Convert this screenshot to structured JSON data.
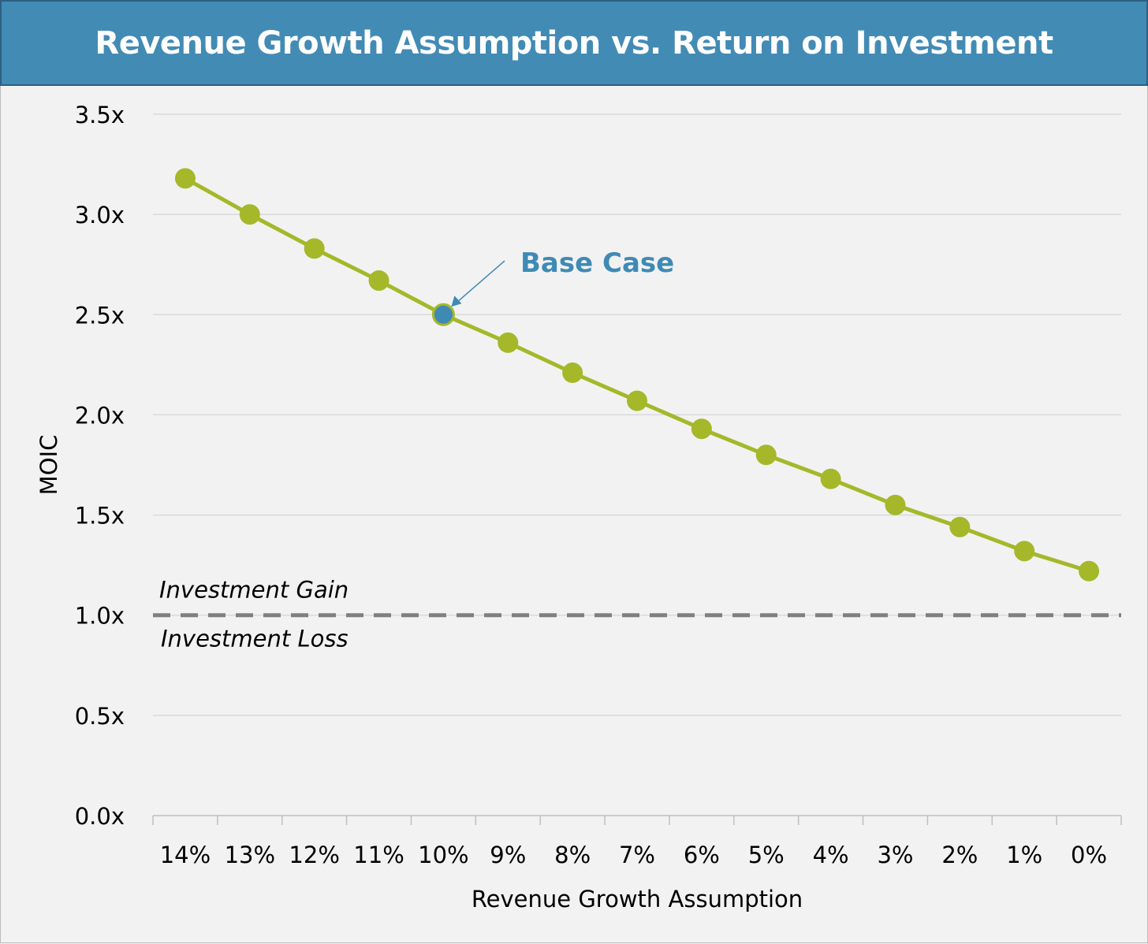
{
  "chart_data": {
    "type": "line",
    "title": "Revenue Growth Assumption vs. Return on Investment",
    "xlabel": "Revenue Growth Assumption",
    "ylabel": "MOIC",
    "categories": [
      "14%",
      "13%",
      "12%",
      "11%",
      "10%",
      "9%",
      "8%",
      "7%",
      "6%",
      "5%",
      "4%",
      "3%",
      "2%",
      "1%",
      "0%"
    ],
    "series": [
      {
        "name": "MOIC",
        "values": [
          3.18,
          3.0,
          2.83,
          2.67,
          2.5,
          2.36,
          2.21,
          2.07,
          1.93,
          1.8,
          1.68,
          1.55,
          1.44,
          1.32,
          1.22
        ]
      }
    ],
    "ylim": [
      0,
      3.5
    ],
    "yticks": [
      0,
      0.5,
      1.0,
      1.5,
      2.0,
      2.5,
      3.0,
      3.5
    ],
    "ytick_labels": [
      "0.0x",
      "0.5x",
      "1.0x",
      "1.5x",
      "2.0x",
      "2.5x",
      "3.0x",
      "3.5x"
    ],
    "grid": true,
    "reference_line": {
      "value": 1.0,
      "label_above": "Investment Gain",
      "label_below": "Investment Loss"
    },
    "highlight": {
      "category": "10%",
      "label": "Base Case"
    },
    "colors": {
      "line": "#a4b82a",
      "highlight": "#3f8ab5",
      "title_bg": "#428bb5",
      "reference": "#7f7f7f"
    }
  }
}
